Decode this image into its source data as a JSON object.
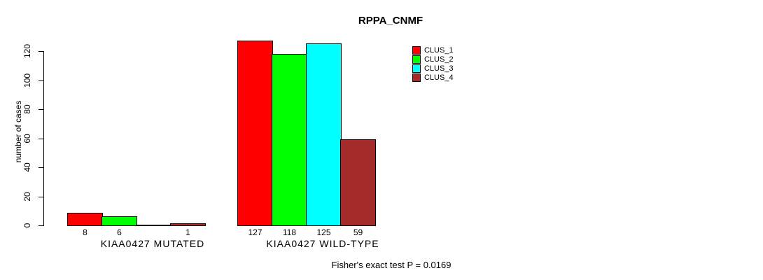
{
  "title": "RPPA_CNMF",
  "chart_data": {
    "type": "bar",
    "title": "RPPA_CNMF",
    "xlabel": "",
    "ylabel": "number of cases",
    "ylim": [
      0,
      120
    ],
    "yticks": [
      0,
      20,
      40,
      60,
      80,
      100,
      120
    ],
    "grid": false,
    "legend_position": "right",
    "categories": [
      "KIAA0427 MUTATED",
      "KIAA0427 WILD-TYPE"
    ],
    "series": [
      {
        "name": "CLUS_1",
        "color": "#ff0000",
        "values": [
          8,
          127
        ]
      },
      {
        "name": "CLUS_2",
        "color": "#00ff00",
        "values": [
          6,
          118
        ]
      },
      {
        "name": "CLUS_3",
        "color": "#00ffff",
        "values": [
          0,
          125
        ]
      },
      {
        "name": "CLUS_4",
        "color": "#a52a2a",
        "values": [
          1,
          59
        ]
      }
    ],
    "bar_value_labels": [
      [
        "8",
        "6",
        "",
        "1"
      ],
      [
        "127",
        "118",
        "125",
        "59"
      ]
    ],
    "annotation": "Fisher's exact test P = 0.0169"
  }
}
